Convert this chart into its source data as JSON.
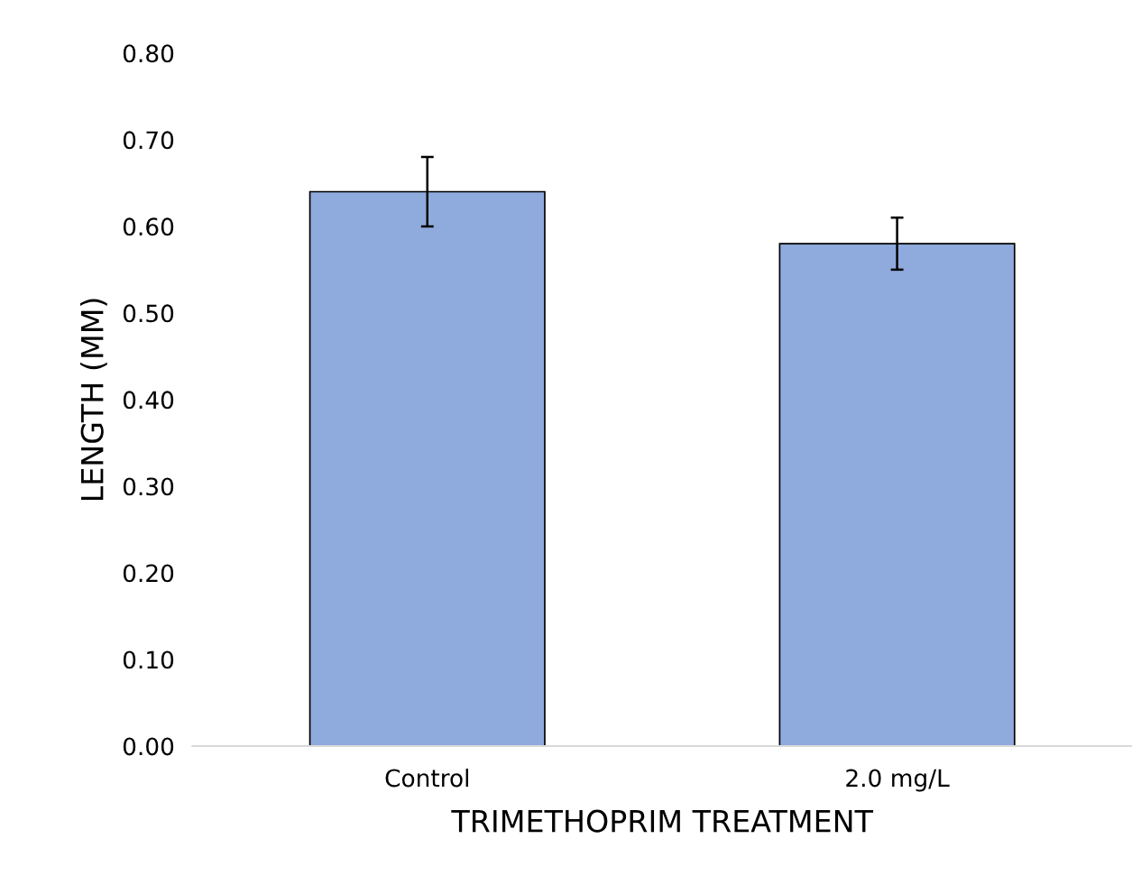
{
  "chart_data": {
    "type": "bar",
    "xlabel": "TRIMETHOPRIM TREATMENT",
    "ylabel": "LENGTH (MM)",
    "categories": [
      "Control",
      "2.0 mg/L"
    ],
    "values": [
      0.64,
      0.58
    ],
    "errors": [
      0.04,
      0.03
    ],
    "color": "#8faadc",
    "ylim": [
      0,
      0.8
    ],
    "yticks": [
      {
        "value": 0,
        "label": "0.00"
      },
      {
        "value": 0.1,
        "label": "0.10"
      },
      {
        "value": 0.2,
        "label": "0.20"
      },
      {
        "value": 0.3,
        "label": "0.30"
      },
      {
        "value": 0.4,
        "label": "0.40"
      },
      {
        "value": 0.5,
        "label": "0.50"
      },
      {
        "value": 0.6,
        "label": "0.60"
      },
      {
        "value": 0.7,
        "label": "0.70"
      },
      {
        "value": 0.8,
        "label": "0.80"
      }
    ],
    "grid": false,
    "legend": false
  }
}
